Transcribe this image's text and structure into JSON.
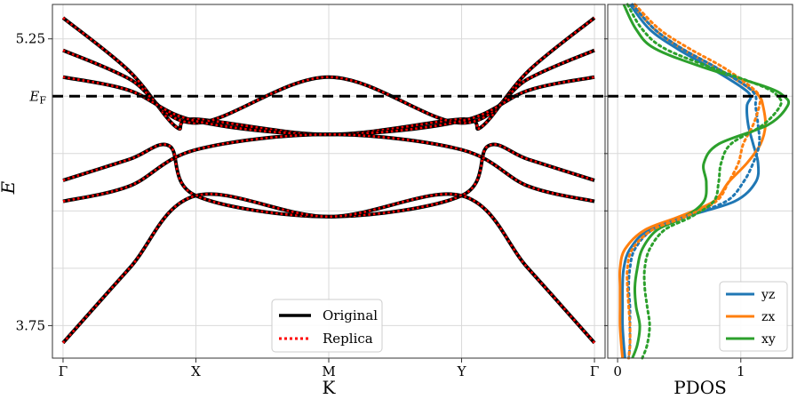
{
  "chart_data": [
    {
      "type": "line",
      "xlabel": "K",
      "ylabel": "E",
      "x_ticks": [
        {
          "label": "Γ",
          "x": 0
        },
        {
          "label": "X",
          "x": 1
        },
        {
          "label": "M",
          "x": 2
        },
        {
          "label": "Y",
          "x": 3
        },
        {
          "label": "Γ",
          "x": 4
        }
      ],
      "y_ticks": [
        {
          "label": "3.75",
          "y": 3.75
        },
        {
          "label": "5.25",
          "y": 5.25
        }
      ],
      "fermi_level": {
        "label_main": "E",
        "label_sub": "F",
        "y": 4.95,
        "style": "dashed",
        "color": "#000000"
      },
      "xlim": [
        -0.08,
        4.08
      ],
      "ylim": [
        3.58,
        5.43
      ],
      "grid": true,
      "legend": {
        "placement": "bottom-center",
        "entries": [
          {
            "label": "Original",
            "color": "#000000",
            "style": "solid"
          },
          {
            "label": "Replica",
            "color": "#ff0000",
            "style": "dotted"
          }
        ]
      },
      "bands": [
        {
          "x": [
            0,
            0.5,
            0.85,
            1,
            2,
            3,
            3.15,
            3.5,
            4
          ],
          "y": [
            5.36,
            5.08,
            4.79,
            4.83,
            4.75,
            4.83,
            4.79,
            5.08,
            5.36
          ]
        },
        {
          "x": [
            0,
            0.5,
            1,
            2,
            3,
            3.5,
            4
          ],
          "y": [
            5.19,
            5.04,
            4.81,
            5.05,
            4.81,
            5.04,
            5.19
          ]
        },
        {
          "x": [
            0,
            0.5,
            1,
            2,
            3,
            3.5,
            4
          ],
          "y": [
            5.05,
            4.98,
            4.82,
            4.75,
            4.82,
            4.98,
            5.05
          ]
        },
        {
          "x": [
            0,
            0.5,
            0.8,
            1,
            2,
            3,
            3.2,
            3.5,
            4
          ],
          "y": [
            4.51,
            4.62,
            4.69,
            4.43,
            4.32,
            4.43,
            4.69,
            4.62,
            4.51
          ]
        },
        {
          "x": [
            0,
            0.5,
            1,
            2,
            3,
            3.5,
            4
          ],
          "y": [
            4.4,
            4.48,
            4.67,
            4.75,
            4.67,
            4.48,
            4.4
          ]
        },
        {
          "x": [
            0,
            0.5,
            1,
            2,
            3,
            3.5,
            4
          ],
          "y": [
            3.66,
            4.05,
            4.43,
            4.32,
            4.43,
            4.05,
            3.66
          ]
        }
      ]
    },
    {
      "type": "line",
      "xlabel": "PDOS",
      "x_ticks": [
        {
          "label": "0",
          "x": 0
        },
        {
          "label": "1",
          "x": 1
        }
      ],
      "xlim": [
        -0.08,
        1.42
      ],
      "ylim": [
        3.58,
        5.43
      ],
      "grid": true,
      "legend": {
        "placement": "bottom-right",
        "entries": [
          {
            "label": "yz",
            "color": "#1f77b4"
          },
          {
            "label": "zx",
            "color": "#ff7f0e"
          },
          {
            "label": "xy",
            "color": "#2ca02c"
          }
        ]
      },
      "series": [
        {
          "name": "yz",
          "color": "#1f77b4",
          "style": "solid",
          "y": [
            5.43,
            5.3,
            5.2,
            5.1,
            5.0,
            4.95,
            4.9,
            4.8,
            4.7,
            4.6,
            4.5,
            4.4,
            4.32,
            4.25,
            4.15,
            4.05,
            3.95,
            3.85,
            3.75,
            3.65,
            3.58
          ],
          "pdos": [
            0.1,
            0.26,
            0.48,
            0.75,
            1.0,
            1.08,
            1.05,
            1.06,
            1.1,
            1.14,
            1.12,
            0.95,
            0.55,
            0.25,
            0.1,
            0.05,
            0.04,
            0.04,
            0.04,
            0.05,
            0.06
          ]
        },
        {
          "name": "zx",
          "color": "#ff7f0e",
          "style": "solid",
          "y": [
            5.43,
            5.3,
            5.2,
            5.1,
            5.0,
            4.95,
            4.9,
            4.8,
            4.7,
            4.6,
            4.5,
            4.4,
            4.32,
            4.25,
            4.15,
            4.05,
            3.95,
            3.85,
            3.75,
            3.65,
            3.58
          ],
          "pdos": [
            0.12,
            0.3,
            0.52,
            0.8,
            1.05,
            1.15,
            1.18,
            1.2,
            1.16,
            1.05,
            0.9,
            0.78,
            0.5,
            0.22,
            0.06,
            0.02,
            0.02,
            0.02,
            0.02,
            0.03,
            0.04
          ]
        },
        {
          "name": "xy",
          "color": "#2ca02c",
          "style": "solid",
          "y": [
            5.43,
            5.3,
            5.2,
            5.1,
            5.0,
            4.95,
            4.9,
            4.8,
            4.7,
            4.6,
            4.5,
            4.4,
            4.32,
            4.25,
            4.15,
            4.05,
            3.95,
            3.85,
            3.75,
            3.65,
            3.58
          ],
          "pdos": [
            0.05,
            0.15,
            0.3,
            0.7,
            1.2,
            1.35,
            1.38,
            1.22,
            0.82,
            0.7,
            0.72,
            0.7,
            0.55,
            0.32,
            0.2,
            0.16,
            0.14,
            0.15,
            0.18,
            0.16,
            0.12
          ]
        },
        {
          "name": "yz",
          "color": "#1f77b4",
          "style": "dotted",
          "y": [
            5.43,
            5.3,
            5.2,
            5.1,
            5.0,
            4.95,
            4.9,
            4.8,
            4.7,
            4.6,
            4.5,
            4.4,
            4.32,
            4.25,
            4.15,
            4.05,
            3.95,
            3.85,
            3.75,
            3.65,
            3.58
          ],
          "pdos": [
            0.12,
            0.3,
            0.52,
            0.8,
            1.05,
            1.12,
            1.12,
            1.14,
            1.15,
            1.1,
            1.02,
            0.88,
            0.55,
            0.28,
            0.14,
            0.1,
            0.09,
            0.1,
            0.1,
            0.1,
            0.09
          ]
        },
        {
          "name": "zx",
          "color": "#ff7f0e",
          "style": "dotted",
          "y": [
            5.43,
            5.3,
            5.2,
            5.1,
            5.0,
            4.95,
            4.9,
            4.8,
            4.7,
            4.6,
            4.5,
            4.4,
            4.32,
            4.25,
            4.15,
            4.05,
            3.95,
            3.85,
            3.75,
            3.65,
            3.58
          ],
          "pdos": [
            0.14,
            0.34,
            0.58,
            0.86,
            1.08,
            1.15,
            1.15,
            1.1,
            1.02,
            0.98,
            0.9,
            0.8,
            0.55,
            0.28,
            0.12,
            0.08,
            0.08,
            0.09,
            0.1,
            0.1,
            0.09
          ]
        },
        {
          "name": "xy",
          "color": "#2ca02c",
          "style": "dotted",
          "y": [
            5.43,
            5.3,
            5.2,
            5.1,
            5.0,
            4.95,
            4.9,
            4.8,
            4.7,
            4.6,
            4.5,
            4.4,
            4.32,
            4.25,
            4.15,
            4.05,
            3.95,
            3.85,
            3.75,
            3.65,
            3.58
          ],
          "pdos": [
            0.08,
            0.2,
            0.38,
            0.76,
            1.18,
            1.3,
            1.32,
            1.18,
            0.92,
            0.84,
            0.82,
            0.78,
            0.6,
            0.38,
            0.26,
            0.22,
            0.22,
            0.24,
            0.26,
            0.24,
            0.2
          ]
        }
      ]
    }
  ]
}
